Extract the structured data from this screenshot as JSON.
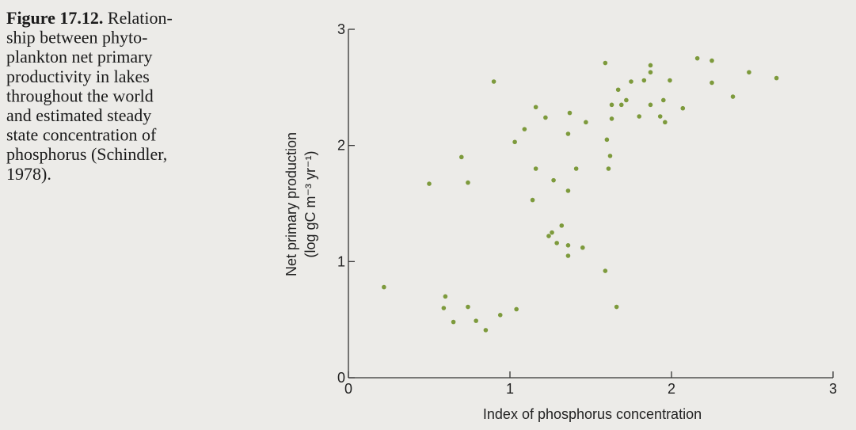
{
  "caption_label": "Figure 17.12.",
  "caption_lines": [
    "Relation-",
    "ship between phyto-",
    "plankton net primary",
    "productivity in lakes",
    "throughout the world",
    "and estimated steady",
    "state concentration of",
    "phosphorus (Schindler,",
    "1978)."
  ],
  "chart_data": {
    "type": "scatter",
    "x_label": "Index of phosphorus concentration",
    "y_label": [
      "Net primary production",
      "(log gC m⁻³ yr⁻¹)"
    ],
    "color": "#7d9a3c",
    "xlim": [
      0,
      3
    ],
    "xticks": [
      0,
      1,
      2,
      3
    ],
    "ylim": [
      0,
      3
    ],
    "yticks": [
      0,
      1,
      2,
      3
    ],
    "x": [
      0.22,
      0.5,
      0.7,
      0.74,
      0.6,
      0.59,
      0.65,
      0.74,
      0.79,
      0.85,
      0.94,
      1.04,
      0.9,
      1.03,
      1.09,
      1.16,
      1.22,
      1.16,
      1.14,
      1.27,
      1.37,
      1.36,
      1.36,
      1.41,
      1.47,
      1.24,
      1.26,
      1.32,
      1.29,
      1.36,
      1.36,
      1.45,
      1.59,
      1.66,
      1.59,
      1.6,
      1.62,
      1.61,
      1.63,
      1.63,
      1.67,
      1.69,
      1.72,
      1.75,
      1.8,
      1.83,
      1.87,
      1.87,
      1.87,
      1.93,
      1.95,
      1.96,
      1.99,
      2.07,
      2.16,
      2.25,
      2.25,
      2.38,
      2.48,
      2.65
    ],
    "values": [
      0.78,
      1.67,
      1.9,
      1.68,
      0.7,
      0.6,
      0.48,
      0.61,
      0.49,
      0.41,
      0.54,
      0.59,
      2.55,
      2.03,
      2.14,
      2.33,
      2.24,
      1.8,
      1.53,
      1.7,
      2.28,
      2.1,
      1.61,
      1.8,
      2.2,
      1.22,
      1.25,
      1.31,
      1.16,
      1.14,
      1.05,
      1.12,
      0.92,
      0.61,
      2.71,
      2.05,
      1.91,
      1.8,
      2.35,
      2.23,
      2.48,
      2.35,
      2.39,
      2.55,
      2.25,
      2.56,
      2.69,
      2.63,
      2.35,
      2.25,
      2.39,
      2.2,
      2.56,
      2.32,
      2.75,
      2.73,
      2.54,
      2.42,
      2.63,
      2.58
    ]
  }
}
